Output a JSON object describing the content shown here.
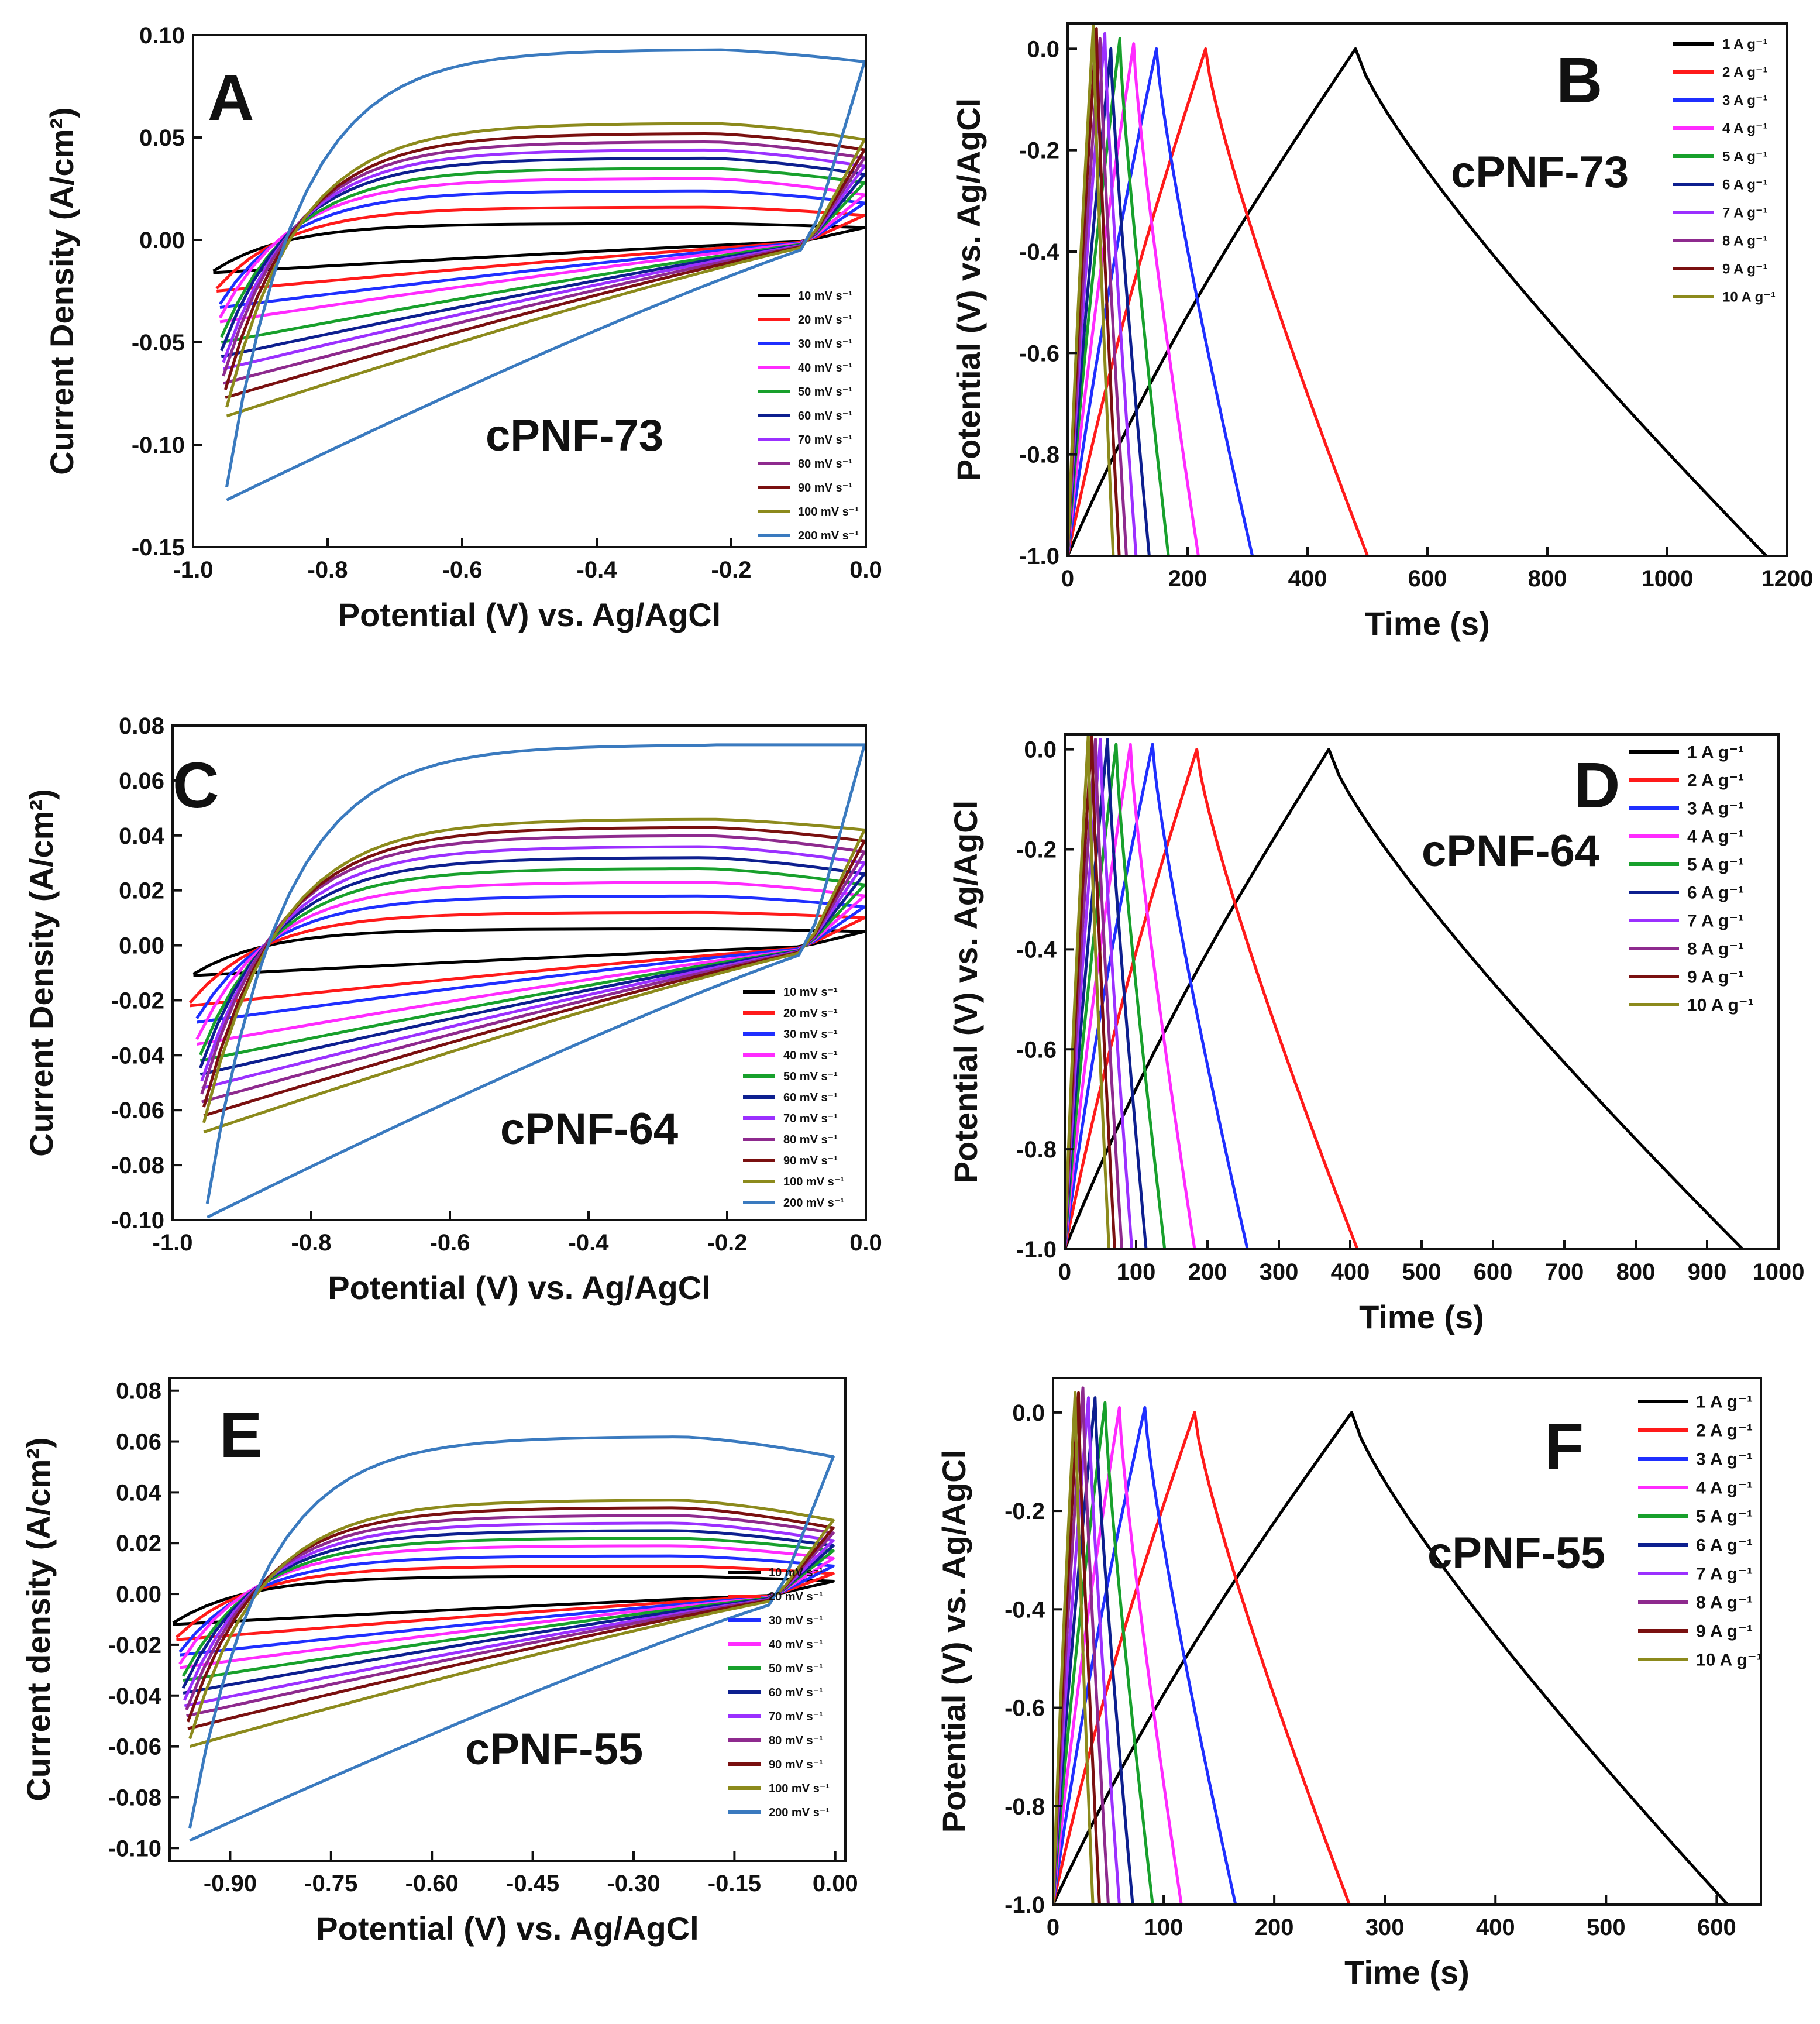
{
  "figure_title": "",
  "chart_data": [
    {
      "panel": "A",
      "type": "line",
      "sample": "cPNF-73",
      "xlabel": "Potential (V) vs. Ag/AgCl",
      "ylabel": "Current Density (A/cm²)",
      "xlim": [
        -1.0,
        0.0
      ],
      "ylim": [
        -0.15,
        0.1
      ],
      "xticks": [
        "-1.0",
        "-0.8",
        "-0.6",
        "-0.4",
        "-0.2",
        "0.0"
      ],
      "yticks": [
        "-0.15",
        "-0.10",
        "-0.05",
        "0.00",
        "0.05",
        "0.10"
      ],
      "x_start": -0.97,
      "x_end": -0.002,
      "legend_position": "bottom-right",
      "series": [
        {
          "name": "10 mV s⁻¹",
          "color": "#000000",
          "x_start": -0.97,
          "upper": 0.008,
          "lower": -0.016,
          "end_top": 0.006
        },
        {
          "name": "20 mV s⁻¹",
          "color": "#ff1a1a",
          "x_start": -0.965,
          "upper": 0.016,
          "lower": -0.025,
          "end_top": 0.012
        },
        {
          "name": "30 mV s⁻¹",
          "color": "#1f2fff",
          "x_start": -0.96,
          "upper": 0.024,
          "lower": -0.033,
          "end_top": 0.018
        },
        {
          "name": "40 mV s⁻¹",
          "color": "#ff2bff",
          "x_start": -0.96,
          "upper": 0.03,
          "lower": -0.04,
          "end_top": 0.022
        },
        {
          "name": "50 mV s⁻¹",
          "color": "#18a02c",
          "x_start": -0.958,
          "upper": 0.035,
          "lower": -0.05,
          "end_top": 0.028
        },
        {
          "name": "60 mV s⁻¹",
          "color": "#0d1f8f",
          "x_start": -0.958,
          "upper": 0.04,
          "lower": -0.057,
          "end_top": 0.032
        },
        {
          "name": "70 mV s⁻¹",
          "color": "#9b30ff",
          "x_start": -0.955,
          "upper": 0.044,
          "lower": -0.063,
          "end_top": 0.036
        },
        {
          "name": "80 mV s⁻¹",
          "color": "#8e2a8e",
          "x_start": -0.955,
          "upper": 0.048,
          "lower": -0.07,
          "end_top": 0.04
        },
        {
          "name": "90 mV s⁻¹",
          "color": "#7a1010",
          "x_start": -0.952,
          "upper": 0.052,
          "lower": -0.077,
          "end_top": 0.044
        },
        {
          "name": "100 mV s⁻¹",
          "color": "#8c8a1c",
          "x_start": -0.95,
          "upper": 0.057,
          "lower": -0.086,
          "end_top": 0.049
        },
        {
          "name": "200 mV s⁻¹",
          "color": "#3a7abf",
          "x_start": -0.95,
          "upper": 0.093,
          "lower": -0.127,
          "end_top": 0.087
        }
      ]
    },
    {
      "panel": "B",
      "type": "line",
      "sample": "cPNF-73",
      "xlabel": "Time (s)",
      "ylabel": "Potential (V) vs. Ag/AgCl",
      "xlim": [
        0,
        1200
      ],
      "ylim": [
        -1.0,
        0.05
      ],
      "xticks": [
        "0",
        "200",
        "400",
        "600",
        "800",
        "1000",
        "1200"
      ],
      "yticks": [
        "-1.0",
        "-0.8",
        "-0.6",
        "-0.4",
        "-0.2",
        "0.0"
      ],
      "legend_position": "top-right",
      "series": [
        {
          "name": "1 A g⁻¹",
          "color": "#000000",
          "peak_time": 480,
          "end_time": 1165,
          "peak_v": 0.0
        },
        {
          "name": "2 A g⁻¹",
          "color": "#ff1a1a",
          "peak_time": 230,
          "end_time": 500,
          "peak_v": 0.0
        },
        {
          "name": "3 A g⁻¹",
          "color": "#1f2fff",
          "peak_time": 148,
          "end_time": 308,
          "peak_v": 0.0
        },
        {
          "name": "4 A g⁻¹",
          "color": "#ff2bff",
          "peak_time": 110,
          "end_time": 218,
          "peak_v": 0.01
        },
        {
          "name": "5 A g⁻¹",
          "color": "#18a02c",
          "peak_time": 87,
          "end_time": 168,
          "peak_v": 0.02
        },
        {
          "name": "6 A g⁻¹",
          "color": "#0d1f8f",
          "peak_time": 72,
          "end_time": 136,
          "peak_v": 0.0
        },
        {
          "name": "7 A g⁻¹",
          "color": "#9b30ff",
          "peak_time": 62,
          "end_time": 114,
          "peak_v": 0.03
        },
        {
          "name": "8 A g⁻¹",
          "color": "#8e2a8e",
          "peak_time": 54,
          "end_time": 98,
          "peak_v": 0.02
        },
        {
          "name": "9 A g⁻¹",
          "color": "#7a1010",
          "peak_time": 48,
          "end_time": 86,
          "peak_v": 0.04
        },
        {
          "name": "10 A g⁻¹",
          "color": "#8c8a1c",
          "peak_time": 43,
          "end_time": 76,
          "peak_v": 0.05
        }
      ]
    },
    {
      "panel": "C",
      "type": "line",
      "sample": "cPNF-64",
      "xlabel": "Potential (V) vs. Ag/AgCl",
      "ylabel": "Current Density (A/cm²)",
      "xlim": [
        -1.0,
        0.0
      ],
      "ylim": [
        -0.1,
        0.08
      ],
      "xticks": [
        "-1.0",
        "-0.8",
        "-0.6",
        "-0.4",
        "-0.2",
        "0.0"
      ],
      "yticks": [
        "-0.10",
        "-0.08",
        "-0.06",
        "-0.04",
        "-0.02",
        "0.00",
        "0.02",
        "0.04",
        "0.06",
        "0.08"
      ],
      "legend_position": "bottom-right",
      "series": [
        {
          "name": "10 mV s⁻¹",
          "color": "#000000",
          "x_start": -0.97,
          "upper": 0.006,
          "lower": -0.011,
          "end_top": 0.005
        },
        {
          "name": "20 mV s⁻¹",
          "color": "#ff1a1a",
          "x_start": -0.975,
          "upper": 0.012,
          "lower": -0.022,
          "end_top": 0.01
        },
        {
          "name": "30 mV s⁻¹",
          "color": "#1f2fff",
          "x_start": -0.965,
          "upper": 0.018,
          "lower": -0.028,
          "end_top": 0.014
        },
        {
          "name": "40 mV s⁻¹",
          "color": "#ff2bff",
          "x_start": -0.965,
          "upper": 0.023,
          "lower": -0.036,
          "end_top": 0.018
        },
        {
          "name": "50 mV s⁻¹",
          "color": "#18a02c",
          "x_start": -0.96,
          "upper": 0.028,
          "lower": -0.042,
          "end_top": 0.022
        },
        {
          "name": "60 mV s⁻¹",
          "color": "#0d1f8f",
          "x_start": -0.96,
          "upper": 0.032,
          "lower": -0.047,
          "end_top": 0.026
        },
        {
          "name": "70 mV s⁻¹",
          "color": "#9b30ff",
          "x_start": -0.958,
          "upper": 0.036,
          "lower": -0.052,
          "end_top": 0.03
        },
        {
          "name": "80 mV s⁻¹",
          "color": "#8e2a8e",
          "x_start": -0.958,
          "upper": 0.04,
          "lower": -0.057,
          "end_top": 0.034
        },
        {
          "name": "90 mV s⁻¹",
          "color": "#7a1010",
          "x_start": -0.955,
          "upper": 0.043,
          "lower": -0.062,
          "end_top": 0.038
        },
        {
          "name": "100 mV s⁻¹",
          "color": "#8c8a1c",
          "x_start": -0.955,
          "upper": 0.046,
          "lower": -0.068,
          "end_top": 0.042
        },
        {
          "name": "200 mV s⁻¹",
          "color": "#3a7abf",
          "x_start": -0.95,
          "upper": 0.073,
          "lower": -0.099,
          "end_top": 0.073
        }
      ]
    },
    {
      "panel": "D",
      "type": "line",
      "sample": "cPNF-64",
      "xlabel": "Time (s)",
      "ylabel": "Potential (V) vs. Ag/AgCl",
      "xlim": [
        0,
        1000
      ],
      "ylim": [
        -1.0,
        0.03
      ],
      "xticks": [
        "0",
        "100",
        "200",
        "300",
        "400",
        "500",
        "600",
        "700",
        "800",
        "900",
        "1000"
      ],
      "yticks": [
        "-1.0",
        "-0.8",
        "-0.6",
        "-0.4",
        "-0.2",
        "0.0"
      ],
      "legend_position": "top-right",
      "series": [
        {
          "name": "1 A g⁻¹",
          "color": "#000000",
          "peak_time": 370,
          "end_time": 950,
          "peak_v": 0.0
        },
        {
          "name": "2 A g⁻¹",
          "color": "#ff1a1a",
          "peak_time": 185,
          "end_time": 410,
          "peak_v": 0.0
        },
        {
          "name": "3 A g⁻¹",
          "color": "#1f2fff",
          "peak_time": 123,
          "end_time": 256,
          "peak_v": 0.01
        },
        {
          "name": "4 A g⁻¹",
          "color": "#ff2bff",
          "peak_time": 92,
          "end_time": 182,
          "peak_v": 0.01
        },
        {
          "name": "5 A g⁻¹",
          "color": "#18a02c",
          "peak_time": 72,
          "end_time": 140,
          "peak_v": 0.01
        },
        {
          "name": "6 A g⁻¹",
          "color": "#0d1f8f",
          "peak_time": 60,
          "end_time": 114,
          "peak_v": 0.02
        },
        {
          "name": "7 A g⁻¹",
          "color": "#9b30ff",
          "peak_time": 50,
          "end_time": 94,
          "peak_v": 0.02
        },
        {
          "name": "8 A g⁻¹",
          "color": "#8e2a8e",
          "peak_time": 43,
          "end_time": 80,
          "peak_v": 0.02
        },
        {
          "name": "9 A g⁻¹",
          "color": "#7a1010",
          "peak_time": 38,
          "end_time": 70,
          "peak_v": 0.03
        },
        {
          "name": "10 A g⁻¹",
          "color": "#8c8a1c",
          "peak_time": 33,
          "end_time": 62,
          "peak_v": 0.03
        }
      ]
    },
    {
      "panel": "E",
      "type": "line",
      "sample": "cPNF-55",
      "xlabel": "Potential (V) vs. Ag/AgCl",
      "ylabel": "Current density (A/cm²)",
      "xlim": [
        -0.99,
        0.015
      ],
      "ylim": [
        -0.105,
        0.085
      ],
      "xticks": [
        "-0.90",
        "-0.75",
        "-0.60",
        "-0.45",
        "-0.30",
        "-0.15",
        "0.00"
      ],
      "yticks": [
        "-0.10",
        "-0.08",
        "-0.06",
        "-0.04",
        "-0.02",
        "0.00",
        "0.02",
        "0.04",
        "0.06",
        "0.08"
      ],
      "legend_position": "bottom-right",
      "series": [
        {
          "name": "10 mV s⁻¹",
          "color": "#000000",
          "x_start": -0.985,
          "upper": 0.007,
          "lower": -0.012,
          "end_top": 0.005
        },
        {
          "name": "20 mV s⁻¹",
          "color": "#ff1a1a",
          "x_start": -0.98,
          "upper": 0.011,
          "lower": -0.018,
          "end_top": 0.008
        },
        {
          "name": "30 mV s⁻¹",
          "color": "#1f2fff",
          "x_start": -0.975,
          "upper": 0.015,
          "lower": -0.024,
          "end_top": 0.011
        },
        {
          "name": "40 mV s⁻¹",
          "color": "#ff2bff",
          "x_start": -0.975,
          "upper": 0.019,
          "lower": -0.029,
          "end_top": 0.014
        },
        {
          "name": "50 mV s⁻¹",
          "color": "#18a02c",
          "x_start": -0.97,
          "upper": 0.022,
          "lower": -0.034,
          "end_top": 0.017
        },
        {
          "name": "60 mV s⁻¹",
          "color": "#0d1f8f",
          "x_start": -0.97,
          "upper": 0.025,
          "lower": -0.039,
          "end_top": 0.019
        },
        {
          "name": "70 mV s⁻¹",
          "color": "#9b30ff",
          "x_start": -0.968,
          "upper": 0.028,
          "lower": -0.044,
          "end_top": 0.021
        },
        {
          "name": "80 mV s⁻¹",
          "color": "#8e2a8e",
          "x_start": -0.965,
          "upper": 0.031,
          "lower": -0.048,
          "end_top": 0.024
        },
        {
          "name": "90 mV s⁻¹",
          "color": "#7a1010",
          "x_start": -0.963,
          "upper": 0.034,
          "lower": -0.053,
          "end_top": 0.026
        },
        {
          "name": "100 mV s⁻¹",
          "color": "#8c8a1c",
          "x_start": -0.96,
          "upper": 0.037,
          "lower": -0.06,
          "end_top": 0.029
        },
        {
          "name": "200 mV s⁻¹",
          "color": "#3a7abf",
          "x_start": -0.96,
          "upper": 0.062,
          "lower": -0.097,
          "end_top": 0.054
        }
      ]
    },
    {
      "panel": "F",
      "type": "line",
      "sample": "cPNF-55",
      "xlabel": "Time (s)",
      "ylabel": "Potential (V) vs. Ag/AgCl",
      "xlim": [
        0,
        640
      ],
      "ylim": [
        -1.0,
        0.07
      ],
      "xticks": [
        "0",
        "100",
        "200",
        "300",
        "400",
        "500",
        "600"
      ],
      "yticks": [
        "-1.0",
        "-0.8",
        "-0.6",
        "-0.4",
        "-0.2",
        "0.0"
      ],
      "legend_position": "top-right",
      "series": [
        {
          "name": "1 A g⁻¹",
          "color": "#000000",
          "peak_time": 270,
          "end_time": 610,
          "peak_v": 0.0
        },
        {
          "name": "2 A g⁻¹",
          "color": "#ff1a1a",
          "peak_time": 128,
          "end_time": 268,
          "peak_v": 0.0
        },
        {
          "name": "3 A g⁻¹",
          "color": "#1f2fff",
          "peak_time": 83,
          "end_time": 165,
          "peak_v": 0.01
        },
        {
          "name": "4 A g⁻¹",
          "color": "#ff2bff",
          "peak_time": 60,
          "end_time": 116,
          "peak_v": 0.01
        },
        {
          "name": "5 A g⁻¹",
          "color": "#18a02c",
          "peak_time": 47,
          "end_time": 90,
          "peak_v": 0.02
        },
        {
          "name": "6 A g⁻¹",
          "color": "#0d1f8f",
          "peak_time": 38,
          "end_time": 72,
          "peak_v": 0.03
        },
        {
          "name": "7 A g⁻¹",
          "color": "#9b30ff",
          "peak_time": 32,
          "end_time": 60,
          "peak_v": 0.03
        },
        {
          "name": "8 A g⁻¹",
          "color": "#8e2a8e",
          "peak_time": 27,
          "end_time": 50,
          "peak_v": 0.05
        },
        {
          "name": "9 A g⁻¹",
          "color": "#7a1010",
          "peak_time": 23,
          "end_time": 42,
          "peak_v": 0.04
        },
        {
          "name": "10 A g⁻¹",
          "color": "#8c8a1c",
          "peak_time": 20,
          "end_time": 36,
          "peak_v": 0.04
        }
      ]
    }
  ]
}
